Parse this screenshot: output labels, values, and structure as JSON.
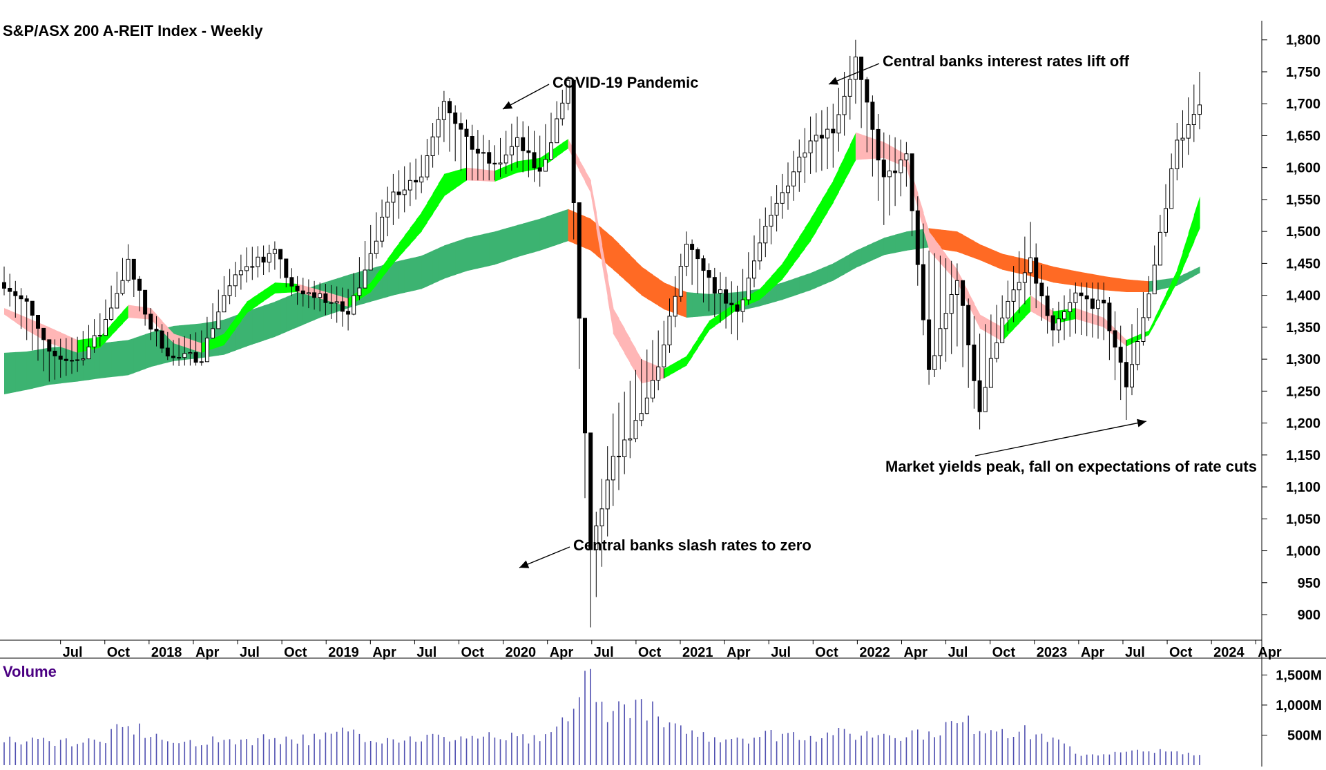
{
  "chart_data": [
    {
      "type": "candlestick",
      "title": "S&P/ASX 200 A-REIT Index - Weekly",
      "ylim": [
        860,
        1830
      ],
      "yticks": [
        900,
        950,
        1000,
        1050,
        1100,
        1150,
        1200,
        1250,
        1300,
        1350,
        1400,
        1450,
        1500,
        1550,
        1600,
        1650,
        1700,
        1750,
        1800
      ],
      "ytick_labels": [
        "900",
        "950",
        "1,000",
        "1,050",
        "1,100",
        "1,150",
        "1,200",
        "1,250",
        "1,300",
        "1,350",
        "1,400",
        "1,450",
        "1,500",
        "1,550",
        "1,600",
        "1,650",
        "1,700",
        "1,750",
        "1,800"
      ],
      "xtick_labels": [
        "Jul",
        "Oct",
        "2018",
        "Apr",
        "Jul",
        "Oct",
        "2019",
        "Apr",
        "Jul",
        "Oct",
        "2020",
        "Apr",
        "Jul",
        "Oct",
        "2021",
        "Apr",
        "Jul",
        "Oct",
        "2022",
        "Apr",
        "Jul",
        "Oct",
        "2023",
        "Apr",
        "Jul",
        "Oct",
        "2024",
        "Apr"
      ],
      "x": [
        0,
        4,
        8,
        13,
        17,
        22,
        26,
        30,
        35,
        39,
        43,
        48,
        52,
        56,
        61,
        65,
        69,
        74,
        78,
        82,
        87,
        91,
        95,
        100,
        104,
        108,
        113,
        117,
        121,
        125,
        130,
        134,
        138,
        143,
        147,
        151,
        156,
        160,
        164,
        169,
        173,
        177,
        182,
        186,
        190,
        195,
        199,
        203,
        208,
        212
      ],
      "close": [
        1420,
        1385,
        1305,
        1298,
        1340,
        1450,
        1350,
        1300,
        1305,
        1400,
        1450,
        1465,
        1400,
        1400,
        1370,
        1470,
        1560,
        1590,
        1710,
        1640,
        1600,
        1640,
        1590,
        1730,
        995,
        1140,
        1210,
        1320,
        1480,
        1420,
        1375,
        1480,
        1560,
        1650,
        1660,
        1770,
        1580,
        1615,
        1280,
        1430,
        1220,
        1370,
        1450,
        1340,
        1400,
        1380,
        1260,
        1400,
        1640,
        1690
      ],
      "high": [
        1445,
        1400,
        1330,
        1335,
        1372,
        1480,
        1380,
        1330,
        1345,
        1430,
        1475,
        1480,
        1430,
        1420,
        1410,
        1510,
        1590,
        1620,
        1720,
        1675,
        1635,
        1680,
        1650,
        1740,
        1010,
        1215,
        1300,
        1360,
        1500,
        1450,
        1415,
        1520,
        1590,
        1680,
        1700,
        1800,
        1655,
        1640,
        1470,
        1450,
        1340,
        1400,
        1515,
        1380,
        1420,
        1420,
        1330,
        1430,
        1670,
        1750
      ],
      "low": [
        1400,
        1330,
        1265,
        1280,
        1320,
        1420,
        1330,
        1290,
        1290,
        1375,
        1420,
        1440,
        1385,
        1375,
        1345,
        1440,
        1510,
        1560,
        1640,
        1580,
        1580,
        1600,
        1570,
        1690,
        880,
        1070,
        1195,
        1270,
        1430,
        1375,
        1330,
        1440,
        1520,
        1590,
        1600,
        1700,
        1510,
        1570,
        1260,
        1320,
        1190,
        1330,
        1400,
        1320,
        1340,
        1330,
        1205,
        1360,
        1580,
        1660
      ],
      "ma_short_high": [
        1380,
        1365,
        1350,
        1330,
        1335,
        1385,
        1380,
        1340,
        1325,
        1340,
        1390,
        1420,
        1418,
        1408,
        1395,
        1420,
        1470,
        1530,
        1590,
        1600,
        1595,
        1610,
        1615,
        1645,
        1580,
        1380,
        1300,
        1285,
        1305,
        1360,
        1390,
        1410,
        1450,
        1520,
        1580,
        1655,
        1640,
        1620,
        1500,
        1440,
        1370,
        1350,
        1400,
        1375,
        1380,
        1365,
        1330,
        1345,
        1440,
        1555
      ],
      "ma_short_low": [
        1370,
        1345,
        1325,
        1310,
        1318,
        1365,
        1362,
        1325,
        1310,
        1322,
        1372,
        1403,
        1405,
        1395,
        1382,
        1405,
        1450,
        1500,
        1555,
        1580,
        1578,
        1592,
        1598,
        1630,
        1560,
        1340,
        1262,
        1270,
        1290,
        1345,
        1378,
        1393,
        1425,
        1485,
        1545,
        1612,
        1615,
        1600,
        1470,
        1420,
        1348,
        1328,
        1375,
        1355,
        1363,
        1350,
        1320,
        1338,
        1420,
        1505
      ],
      "ma_long_high": [
        1310,
        1312,
        1318,
        1322,
        1325,
        1330,
        1342,
        1352,
        1356,
        1362,
        1375,
        1390,
        1405,
        1418,
        1432,
        1442,
        1452,
        1462,
        1478,
        1490,
        1500,
        1510,
        1520,
        1535,
        1520,
        1490,
        1445,
        1420,
        1405,
        1402,
        1405,
        1410,
        1420,
        1435,
        1450,
        1470,
        1490,
        1500,
        1505,
        1500,
        1480,
        1465,
        1455,
        1445,
        1438,
        1430,
        1425,
        1422,
        1428,
        1445
      ],
      "ma_long_low": [
        1245,
        1252,
        1260,
        1265,
        1270,
        1275,
        1288,
        1297,
        1302,
        1307,
        1320,
        1335,
        1350,
        1365,
        1380,
        1390,
        1400,
        1410,
        1426,
        1438,
        1448,
        1460,
        1470,
        1485,
        1470,
        1440,
        1400,
        1378,
        1365,
        1368,
        1375,
        1383,
        1393,
        1408,
        1423,
        1443,
        1463,
        1470,
        1475,
        1468,
        1455,
        1440,
        1430,
        1420,
        1415,
        1408,
        1405,
        1405,
        1415,
        1435
      ],
      "annotations": [
        "COVID-19 Pandemic",
        "Central banks slash rates to zero",
        "Central banks interest rates lift off",
        "Market yields peak, fall on expectations of rate cuts"
      ],
      "colors": {
        "candle": "#000000",
        "ma_short_up": "#00ff00",
        "ma_short_down": "#ffb6b6",
        "ma_long_up": "#3cb371",
        "ma_long_down": "#ff6a24"
      }
    },
    {
      "type": "bar",
      "title": "Volume",
      "ylim": [
        0,
        1700
      ],
      "yticks": [
        500,
        1000,
        1500
      ],
      "ytick_labels": [
        "500M",
        "1,000M",
        "1,500M"
      ],
      "x": [
        0,
        8,
        17,
        22,
        30,
        39,
        48,
        56,
        61,
        69,
        78,
        87,
        95,
        100,
        104,
        105,
        108,
        113,
        117,
        121,
        130,
        138,
        147,
        156,
        164,
        169,
        177,
        186,
        190,
        195,
        203,
        212
      ],
      "values": [
        380,
        400,
        390,
        650,
        370,
        420,
        450,
        430,
        560,
        430,
        470,
        460,
        400,
        730,
        1600,
        1050,
        900,
        1100,
        630,
        520,
        460,
        520,
        500,
        520,
        560,
        700,
        600,
        460,
        190,
        180,
        230,
        170
      ],
      "color": "#5050b0"
    }
  ]
}
